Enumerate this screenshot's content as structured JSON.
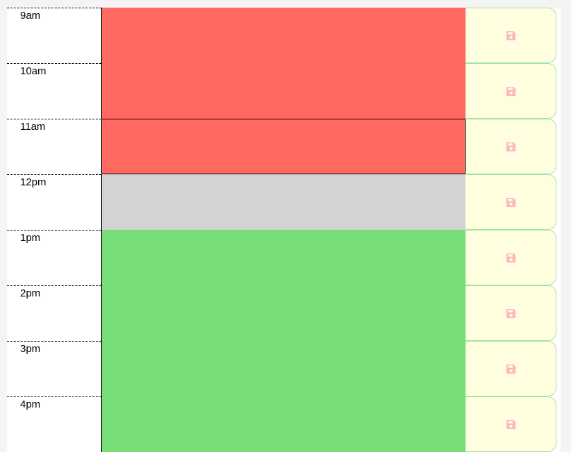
{
  "planner": {
    "rows": [
      {
        "hour": "9am",
        "text": "",
        "state": "past"
      },
      {
        "hour": "10am",
        "text": "",
        "state": "past"
      },
      {
        "hour": "11am",
        "text": "",
        "state": "past",
        "focused": true
      },
      {
        "hour": "12pm",
        "text": "",
        "state": "present"
      },
      {
        "hour": "1pm",
        "text": "",
        "state": "future"
      },
      {
        "hour": "2pm",
        "text": "",
        "state": "future"
      },
      {
        "hour": "3pm",
        "text": "",
        "state": "future"
      },
      {
        "hour": "4pm",
        "text": "",
        "state": "future"
      }
    ],
    "save_icon": "floppy-disk-icon"
  },
  "colors": {
    "past": "#ff6961",
    "present": "#d3d3d3",
    "future": "#77dd77",
    "save_bg": "#ffffe0",
    "save_border": "#a3e4a3",
    "save_icon": "#ffb6c1"
  }
}
